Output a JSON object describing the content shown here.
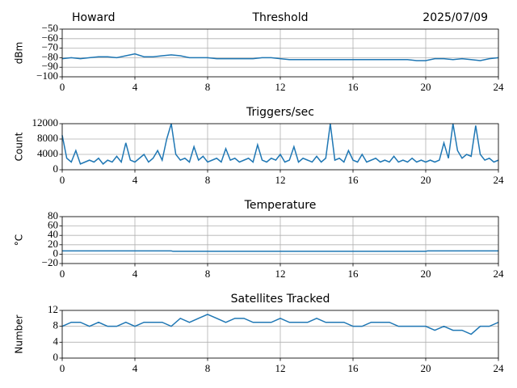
{
  "chart_data": [
    {
      "type": "line",
      "title": "Threshold",
      "title_left": "Howard",
      "title_right": "2025/07/09",
      "ylabel": "dBm",
      "x": [
        0,
        0.5,
        1,
        1.5,
        2,
        2.5,
        3,
        3.5,
        4,
        4.5,
        5,
        5.5,
        6,
        6.5,
        7,
        7.5,
        8,
        8.5,
        9,
        9.5,
        10,
        10.5,
        11,
        11.5,
        12,
        12.5,
        13,
        13.5,
        14,
        14.5,
        15,
        15.5,
        16,
        16.5,
        17,
        17.5,
        18,
        18.5,
        19,
        19.5,
        20,
        20.5,
        21,
        21.5,
        22,
        22.5,
        23,
        23.5,
        24
      ],
      "values": [
        -81,
        -80,
        -81,
        -80,
        -79,
        -79,
        -80,
        -78,
        -76,
        -79,
        -79,
        -78,
        -77,
        -78,
        -80,
        -80,
        -80,
        -81,
        -81,
        -81,
        -81,
        -81,
        -80,
        -80,
        -81,
        -82,
        -82,
        -82,
        -82,
        -82,
        -82,
        -82,
        -82,
        -82,
        -82,
        -82,
        -82,
        -82,
        -82,
        -83,
        -83,
        -81,
        -81,
        -82,
        -81,
        -82,
        -83,
        -81,
        -80
      ],
      "color": "#1f77b4",
      "grid": true,
      "xlim": [
        0,
        24
      ],
      "xticks": [
        0,
        4,
        8,
        12,
        16,
        20,
        24
      ],
      "ylim": [
        -100,
        -50
      ],
      "yticks": [
        {
          "value": -100,
          "label": "−100"
        },
        {
          "value": -90,
          "label": "−90"
        },
        {
          "value": -80,
          "label": "−80"
        },
        {
          "value": -70,
          "label": "−70"
        },
        {
          "value": -60,
          "label": "−60"
        },
        {
          "value": -50,
          "label": "−50"
        }
      ]
    },
    {
      "type": "line",
      "title": "Triggers/sec",
      "ylabel": "Count",
      "x": [
        0,
        0.25,
        0.5,
        0.75,
        1,
        1.25,
        1.5,
        1.75,
        2,
        2.25,
        2.5,
        2.75,
        3,
        3.25,
        3.5,
        3.75,
        4,
        4.25,
        4.5,
        4.75,
        5,
        5.25,
        5.5,
        5.75,
        6,
        6.25,
        6.5,
        6.75,
        7,
        7.25,
        7.5,
        7.75,
        8,
        8.25,
        8.5,
        8.75,
        9,
        9.25,
        9.5,
        9.75,
        10,
        10.25,
        10.5,
        10.75,
        11,
        11.25,
        11.5,
        11.75,
        12,
        12.25,
        12.5,
        12.75,
        13,
        13.25,
        13.5,
        13.75,
        14,
        14.25,
        14.5,
        14.75,
        15,
        15.25,
        15.5,
        15.75,
        16,
        16.25,
        16.5,
        16.75,
        17,
        17.25,
        17.5,
        17.75,
        18,
        18.25,
        18.5,
        18.75,
        19,
        19.25,
        19.5,
        19.75,
        20,
        20.25,
        20.5,
        20.75,
        21,
        21.25,
        21.5,
        21.75,
        22,
        22.25,
        22.5,
        22.75,
        23,
        23.25,
        23.5,
        23.75,
        24
      ],
      "values": [
        9000,
        3000,
        2000,
        5000,
        1500,
        2000,
        2500,
        2000,
        3000,
        1500,
        2500,
        2000,
        3500,
        2000,
        7000,
        2500,
        2000,
        3000,
        4000,
        2000,
        3000,
        5000,
        2500,
        8000,
        12000,
        4000,
        2500,
        3000,
        2000,
        6000,
        2500,
        3500,
        2000,
        2500,
        3000,
        2000,
        5500,
        2500,
        3000,
        2000,
        2500,
        3000,
        2000,
        6500,
        2500,
        2000,
        3000,
        2500,
        4000,
        2000,
        2500,
        6000,
        2000,
        3000,
        2500,
        2000,
        3500,
        2000,
        3000,
        12000,
        2500,
        3000,
        2000,
        5000,
        2500,
        2000,
        4000,
        2000,
        2500,
        3000,
        2000,
        2500,
        2000,
        3500,
        2000,
        2500,
        2000,
        3000,
        2000,
        2500,
        2000,
        2500,
        2000,
        2500,
        7000,
        3000,
        12000,
        5000,
        3000,
        4000,
        3500,
        11500,
        4000,
        2500,
        3000,
        2000,
        2500
      ],
      "color": "#1f77b4",
      "grid": true,
      "xlim": [
        0,
        24
      ],
      "xticks": [
        0,
        4,
        8,
        12,
        16,
        20,
        24
      ],
      "ylim": [
        0,
        12000
      ],
      "yticks": [
        0,
        4000,
        8000,
        12000
      ]
    },
    {
      "type": "line",
      "title": "Temperature",
      "ylabel": "°C",
      "x": [
        0,
        6,
        6.1,
        20,
        20.1,
        24
      ],
      "values": [
        7,
        7,
        6,
        6,
        7,
        7
      ],
      "color": "#1f77b4",
      "grid": true,
      "xlim": [
        0,
        24
      ],
      "xticks": [
        0,
        4,
        8,
        12,
        16,
        20,
        24
      ],
      "ylim": [
        -20,
        80
      ],
      "yticks": [
        {
          "value": -20,
          "label": "−20"
        },
        0,
        20,
        40,
        60,
        80
      ]
    },
    {
      "type": "line",
      "title": "Satellites Tracked",
      "ylabel": "Number",
      "x": [
        0,
        0.5,
        1,
        1.5,
        2,
        2.5,
        3,
        3.5,
        4,
        4.5,
        5,
        5.5,
        6,
        6.5,
        7,
        7.5,
        8,
        8.5,
        9,
        9.5,
        10,
        10.5,
        11,
        11.5,
        12,
        12.5,
        13,
        13.5,
        14,
        14.5,
        15,
        15.5,
        16,
        16.5,
        17,
        17.5,
        18,
        18.5,
        19,
        19.5,
        20,
        20.5,
        21,
        21.5,
        22,
        22.5,
        23,
        23.5,
        24
      ],
      "values": [
        8,
        9,
        9,
        8,
        9,
        8,
        8,
        9,
        8,
        9,
        9,
        9,
        8,
        10,
        9,
        10,
        11,
        10,
        9,
        10,
        10,
        9,
        9,
        9,
        10,
        9,
        9,
        9,
        10,
        9,
        9,
        9,
        8,
        8,
        9,
        9,
        9,
        8,
        8,
        8,
        8,
        7,
        8,
        7,
        7,
        6,
        8,
        8,
        9
      ],
      "color": "#1f77b4",
      "grid": true,
      "xlim": [
        0,
        24
      ],
      "xticks": [
        0,
        4,
        8,
        12,
        16,
        20,
        24
      ],
      "ylim": [
        0,
        12
      ],
      "yticks": [
        0,
        4,
        8,
        12
      ]
    }
  ]
}
